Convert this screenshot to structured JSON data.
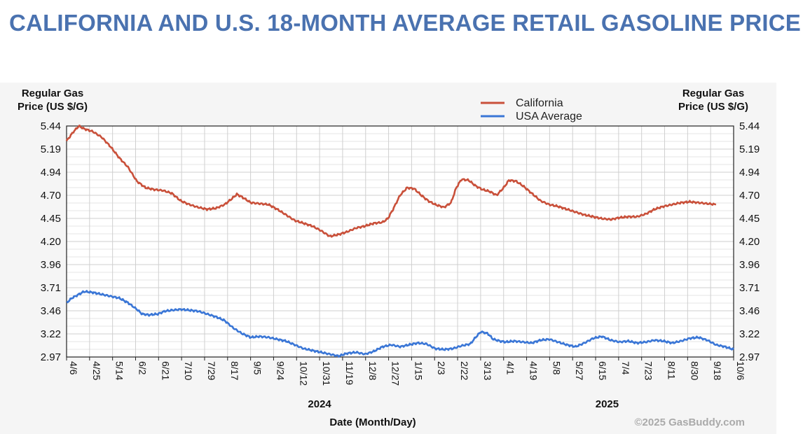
{
  "title": "CALIFORNIA AND U.S. 18-MONTH AVERAGE RETAIL GASOLINE PRICE",
  "chart_data": {
    "type": "line",
    "ylabel_left_line1": "Regular Gas",
    "ylabel_left_line2": "Price (US $/G)",
    "ylabel_right_line1": "Regular Gas",
    "ylabel_right_line2": "Price (US $/G)",
    "xlabel": "Date (Month/Day)",
    "ylim": [
      2.97,
      5.44
    ],
    "y_ticks": [
      "5.44",
      "5.19",
      "4.94",
      "4.70",
      "4.45",
      "4.20",
      "3.96",
      "3.71",
      "3.46",
      "3.22",
      "2.97"
    ],
    "x_ticks": [
      "4/6",
      "4/25",
      "5/14",
      "6/2",
      "6/21",
      "7/10",
      "7/29",
      "8/17",
      "9/5",
      "9/24",
      "10/12",
      "10/31",
      "11/19",
      "12/8",
      "12/27",
      "1/15",
      "2/3",
      "2/22",
      "3/13",
      "4/1",
      "4/19",
      "5/8",
      "5/27",
      "6/15",
      "7/4",
      "7/23",
      "8/11",
      "8/30",
      "9/18",
      "10/6"
    ],
    "years": [
      {
        "label": "2024",
        "tick_index": 11
      },
      {
        "label": "2025",
        "tick_index": 23.5
      }
    ],
    "legend": [
      "California",
      "USA Average"
    ],
    "credit": "©2025 GasBuddy.com",
    "series": [
      {
        "name": "California",
        "color": "#c9503a",
        "points": [
          [
            0,
            5.28
          ],
          [
            0.4,
            5.38
          ],
          [
            0.7,
            5.44
          ],
          [
            1.0,
            5.41
          ],
          [
            1.5,
            5.38
          ],
          [
            2.0,
            5.32
          ],
          [
            2.5,
            5.22
          ],
          [
            3.0,
            5.1
          ],
          [
            3.5,
            5.0
          ],
          [
            4.0,
            4.85
          ],
          [
            4.5,
            4.78
          ],
          [
            5.0,
            4.76
          ],
          [
            5.5,
            4.75
          ],
          [
            6.0,
            4.72
          ],
          [
            6.5,
            4.64
          ],
          [
            7.0,
            4.6
          ],
          [
            7.5,
            4.57
          ],
          [
            8.0,
            4.55
          ],
          [
            8.5,
            4.56
          ],
          [
            9.0,
            4.6
          ],
          [
            9.4,
            4.66
          ],
          [
            9.7,
            4.71
          ],
          [
            10.0,
            4.68
          ],
          [
            10.5,
            4.62
          ],
          [
            11.0,
            4.61
          ],
          [
            11.5,
            4.6
          ],
          [
            12.0,
            4.55
          ],
          [
            12.5,
            4.49
          ],
          [
            13.0,
            4.43
          ],
          [
            13.5,
            4.4
          ],
          [
            14.0,
            4.37
          ],
          [
            14.5,
            4.32
          ],
          [
            15.0,
            4.26
          ],
          [
            15.5,
            4.28
          ],
          [
            16.0,
            4.31
          ],
          [
            16.5,
            4.35
          ],
          [
            17.0,
            4.37
          ],
          [
            17.5,
            4.4
          ],
          [
            18.0,
            4.41
          ],
          [
            18.3,
            4.45
          ],
          [
            18.6,
            4.55
          ],
          [
            19.0,
            4.7
          ],
          [
            19.4,
            4.78
          ],
          [
            19.8,
            4.77
          ],
          [
            20.2,
            4.7
          ],
          [
            20.6,
            4.64
          ],
          [
            21.0,
            4.6
          ],
          [
            21.5,
            4.57
          ],
          [
            21.9,
            4.62
          ],
          [
            22.2,
            4.78
          ],
          [
            22.5,
            4.87
          ],
          [
            22.9,
            4.86
          ],
          [
            23.3,
            4.8
          ],
          [
            23.7,
            4.76
          ],
          [
            24.1,
            4.74
          ],
          [
            24.5,
            4.7
          ],
          [
            24.9,
            4.78
          ],
          [
            25.2,
            4.86
          ],
          [
            25.6,
            4.85
          ],
          [
            26.0,
            4.8
          ],
          [
            26.5,
            4.72
          ],
          [
            27.0,
            4.64
          ],
          [
            27.5,
            4.6
          ],
          [
            28.0,
            4.58
          ],
          [
            28.5,
            4.55
          ],
          [
            29.0,
            4.52
          ],
          [
            29.5,
            4.49
          ],
          [
            30.0,
            4.47
          ],
          [
            30.5,
            4.45
          ],
          [
            31.0,
            4.44
          ],
          [
            31.5,
            4.46
          ],
          [
            32.0,
            4.47
          ],
          [
            32.5,
            4.47
          ],
          [
            33.0,
            4.5
          ],
          [
            33.5,
            4.55
          ],
          [
            34.0,
            4.58
          ],
          [
            34.5,
            4.6
          ],
          [
            35.0,
            4.62
          ],
          [
            35.5,
            4.63
          ],
          [
            36.0,
            4.62
          ],
          [
            36.5,
            4.61
          ],
          [
            37.0,
            4.6
          ]
        ]
      },
      {
        "name": "USA Average",
        "color": "#3a76d6",
        "points": [
          [
            0,
            3.55
          ],
          [
            0.3,
            3.6
          ],
          [
            0.7,
            3.64
          ],
          [
            1.0,
            3.67
          ],
          [
            1.5,
            3.66
          ],
          [
            2.0,
            3.64
          ],
          [
            2.5,
            3.62
          ],
          [
            3.0,
            3.6
          ],
          [
            3.5,
            3.55
          ],
          [
            4.0,
            3.48
          ],
          [
            4.3,
            3.43
          ],
          [
            4.7,
            3.42
          ],
          [
            5.2,
            3.43
          ],
          [
            5.6,
            3.46
          ],
          [
            6.0,
            3.47
          ],
          [
            6.5,
            3.48
          ],
          [
            7.0,
            3.47
          ],
          [
            7.5,
            3.46
          ],
          [
            8.0,
            3.43
          ],
          [
            8.5,
            3.4
          ],
          [
            9.0,
            3.36
          ],
          [
            9.5,
            3.28
          ],
          [
            10.0,
            3.22
          ],
          [
            10.5,
            3.18
          ],
          [
            11.0,
            3.19
          ],
          [
            11.5,
            3.18
          ],
          [
            12.0,
            3.16
          ],
          [
            12.5,
            3.14
          ],
          [
            13.0,
            3.1
          ],
          [
            13.5,
            3.06
          ],
          [
            14.0,
            3.04
          ],
          [
            14.5,
            3.02
          ],
          [
            15.0,
            3.0
          ],
          [
            15.5,
            2.98
          ],
          [
            16.0,
            3.01
          ],
          [
            16.5,
            3.02
          ],
          [
            17.0,
            3.0
          ],
          [
            17.5,
            3.03
          ],
          [
            18.0,
            3.08
          ],
          [
            18.5,
            3.1
          ],
          [
            19.0,
            3.08
          ],
          [
            19.5,
            3.1
          ],
          [
            20.0,
            3.12
          ],
          [
            20.5,
            3.11
          ],
          [
            21.0,
            3.06
          ],
          [
            21.5,
            3.05
          ],
          [
            22.0,
            3.06
          ],
          [
            22.5,
            3.09
          ],
          [
            23.0,
            3.11
          ],
          [
            23.3,
            3.18
          ],
          [
            23.6,
            3.24
          ],
          [
            24.0,
            3.22
          ],
          [
            24.3,
            3.16
          ],
          [
            24.7,
            3.14
          ],
          [
            25.0,
            3.13
          ],
          [
            25.5,
            3.14
          ],
          [
            26.0,
            3.13
          ],
          [
            26.5,
            3.12
          ],
          [
            27.0,
            3.15
          ],
          [
            27.5,
            3.16
          ],
          [
            28.0,
            3.13
          ],
          [
            28.5,
            3.1
          ],
          [
            29.0,
            3.08
          ],
          [
            29.5,
            3.12
          ],
          [
            30.0,
            3.17
          ],
          [
            30.5,
            3.19
          ],
          [
            31.0,
            3.15
          ],
          [
            31.5,
            3.13
          ],
          [
            32.0,
            3.14
          ],
          [
            32.5,
            3.12
          ],
          [
            33.0,
            3.13
          ],
          [
            33.5,
            3.15
          ],
          [
            34.0,
            3.14
          ],
          [
            34.5,
            3.12
          ],
          [
            35.0,
            3.14
          ],
          [
            35.5,
            3.17
          ],
          [
            36.0,
            3.18
          ],
          [
            36.5,
            3.15
          ],
          [
            37.0,
            3.1
          ],
          [
            37.5,
            3.08
          ],
          [
            38.0,
            3.05
          ]
        ]
      }
    ]
  }
}
